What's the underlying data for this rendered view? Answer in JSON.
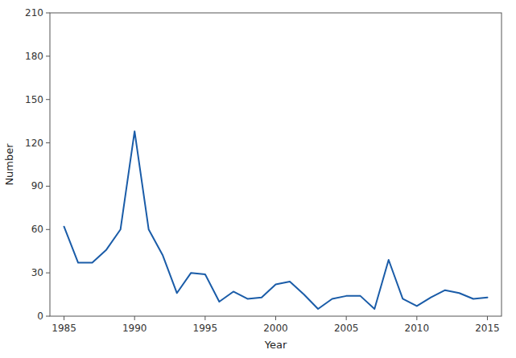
{
  "chart_data": {
    "type": "line",
    "x": [
      1985,
      1986,
      1987,
      1988,
      1989,
      1990,
      1991,
      1992,
      1993,
      1994,
      1995,
      1996,
      1997,
      1998,
      1999,
      2000,
      2001,
      2002,
      2003,
      2004,
      2005,
      2006,
      2007,
      2008,
      2009,
      2010,
      2011,
      2012,
      2013,
      2014,
      2015
    ],
    "values": [
      62,
      37,
      37,
      46,
      60,
      128,
      60,
      42,
      16,
      30,
      29,
      10,
      17,
      12,
      13,
      22,
      24,
      15,
      5,
      12,
      14,
      14,
      5,
      39,
      12,
      7,
      13,
      18,
      16,
      12,
      13
    ],
    "color": "#1a5ca8",
    "xlabel": "Year",
    "ylabel": "Number",
    "xlim": [
      1984,
      2016
    ],
    "ylim": [
      0,
      210
    ],
    "xticks": [
      1985,
      1990,
      1995,
      2000,
      2005,
      2010,
      2015
    ],
    "yticks": [
      0,
      30,
      60,
      90,
      120,
      150,
      180,
      210
    ],
    "grid": false
  }
}
